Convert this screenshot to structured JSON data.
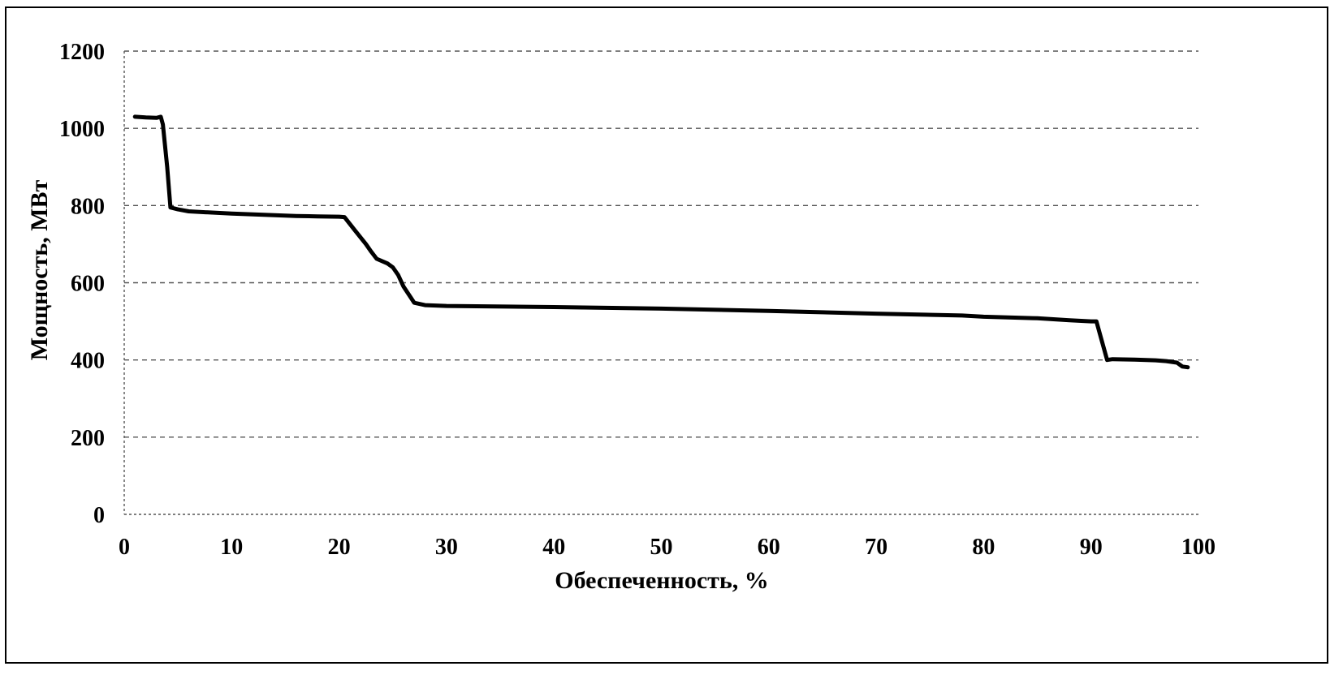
{
  "chart_data": {
    "type": "line",
    "title": "",
    "xlabel": "Обеспеченность, %",
    "ylabel": "Мощность, МВт",
    "xlim": [
      0,
      100
    ],
    "ylim": [
      0,
      1200
    ],
    "x_ticks": [
      0,
      10,
      20,
      30,
      40,
      50,
      60,
      70,
      80,
      90,
      100
    ],
    "y_ticks": [
      0,
      200,
      400,
      600,
      800,
      1000,
      1200
    ],
    "x_tick_labels": [
      "0",
      "10",
      "20",
      "30",
      "40",
      "50",
      "60",
      "70",
      "80",
      "90",
      "100"
    ],
    "y_tick_labels": [
      "0",
      "200",
      "400",
      "600",
      "800",
      "1000",
      "1200"
    ],
    "grid": "horizontal dashed",
    "legend": "none",
    "line_color": "#000000",
    "series": [
      {
        "x": [
          1,
          2,
          3,
          3.4,
          3.6,
          4.0,
          4.3,
          5,
          6,
          8,
          10,
          12,
          14,
          16,
          18,
          20,
          20.5,
          21.5,
          22.5,
          23,
          23.5,
          24.5,
          25,
          25.5,
          26,
          27,
          28,
          30,
          40,
          50,
          60,
          70,
          78,
          80,
          85,
          88,
          90,
          90.5,
          91,
          91.5,
          92,
          94,
          96,
          97,
          98,
          98.5,
          99
        ],
        "y": [
          1030,
          1028,
          1027,
          1030,
          1010,
          900,
          795,
          790,
          785,
          782,
          779,
          777,
          775,
          773,
          772,
          771,
          770,
          735,
          700,
          680,
          662,
          650,
          640,
          620,
          590,
          548,
          542,
          540,
          537,
          533,
          527,
          520,
          515,
          512,
          508,
          503,
          500,
          500,
          450,
          400,
          402,
          401,
          399,
          397,
          393,
          383,
          381
        ]
      }
    ]
  }
}
